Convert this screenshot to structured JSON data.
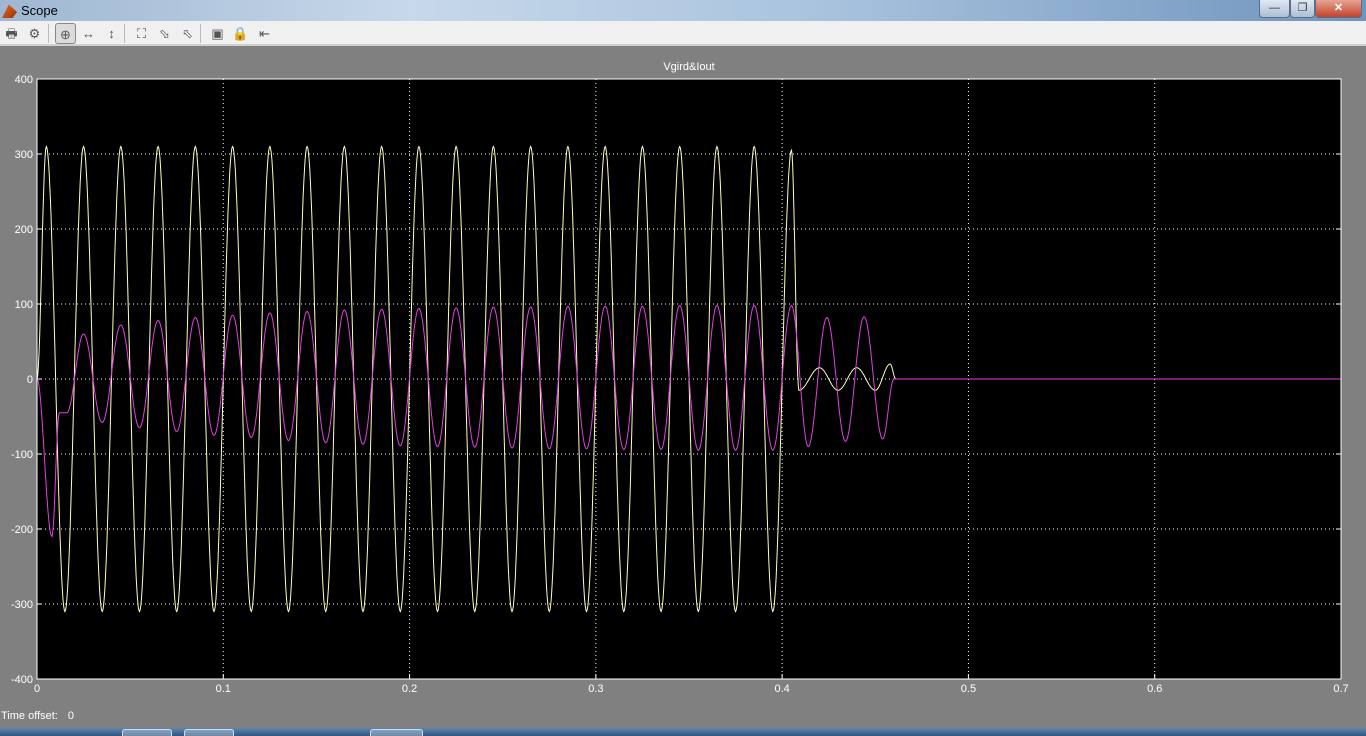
{
  "window": {
    "title": "Scope",
    "minimize_icon": "minimize-icon",
    "restore_icon": "restore-icon",
    "close_icon": "close-icon"
  },
  "toolbar": {
    "items": [
      {
        "name": "print-icon",
        "glyph": "🖶"
      },
      {
        "name": "parameters-icon",
        "glyph": "⚙"
      },
      {
        "name": "zoom-icon",
        "glyph": "⊕",
        "active": true
      },
      {
        "name": "zoom-x-icon",
        "glyph": "↔"
      },
      {
        "name": "zoom-y-icon",
        "glyph": "↕"
      },
      {
        "name": "autoscale-icon",
        "glyph": "⛶"
      },
      {
        "name": "save-axes-icon",
        "glyph": "⬂"
      },
      {
        "name": "restore-axes-icon",
        "glyph": "⬁"
      },
      {
        "name": "floating-scope-icon",
        "glyph": "▣"
      },
      {
        "name": "lock-axes-icon",
        "glyph": "🔒"
      },
      {
        "name": "signal-selection-icon",
        "glyph": "⇤"
      }
    ]
  },
  "footer": {
    "time_offset_label": "Time offset:",
    "time_offset_value": "0"
  },
  "chart_data": {
    "type": "line",
    "title": "Vgird&Iout",
    "xlabel": "",
    "ylabel": "",
    "xlim": [
      0,
      0.7
    ],
    "ylim": [
      -400,
      400
    ],
    "xticks": [
      "0",
      "0.1",
      "0.2",
      "0.3",
      "0.4",
      "0.5",
      "0.6",
      "0.7"
    ],
    "yticks": [
      "-400",
      "-300",
      "-200",
      "-100",
      "0",
      "100",
      "200",
      "300",
      "400"
    ],
    "grid": true,
    "background": "#000000",
    "series": [
      {
        "color": "#ffffc0",
        "x": [
          0,
          0.005,
          0.015,
          0.025,
          0.035,
          0.045,
          0.055,
          0.065,
          0.075,
          0.085,
          0.095,
          0.105,
          0.115,
          0.125,
          0.135,
          0.145,
          0.155,
          0.165,
          0.175,
          0.185,
          0.195,
          0.205,
          0.215,
          0.225,
          0.235,
          0.245,
          0.255,
          0.265,
          0.275,
          0.285,
          0.295,
          0.305,
          0.315,
          0.325,
          0.335,
          0.345,
          0.355,
          0.365,
          0.375,
          0.385,
          0.395,
          0.405,
          0.409,
          0.42,
          0.43,
          0.44,
          0.45,
          0.458,
          0.461,
          0.7
        ],
        "y": [
          0,
          310,
          -310,
          310,
          -310,
          310,
          -310,
          310,
          -310,
          310,
          -310,
          310,
          -310,
          310,
          -310,
          310,
          -310,
          310,
          -310,
          310,
          -310,
          310,
          -310,
          310,
          -310,
          310,
          -310,
          310,
          -310,
          310,
          -310,
          310,
          -310,
          310,
          -310,
          310,
          -310,
          310,
          -310,
          310,
          -310,
          305,
          -15,
          15,
          -15,
          15,
          -15,
          20,
          0,
          0
        ]
      },
      {
        "color": "#e040e0",
        "x": [
          0,
          0.008,
          0.012,
          0.016,
          0.025,
          0.035,
          0.045,
          0.055,
          0.065,
          0.075,
          0.085,
          0.095,
          0.105,
          0.115,
          0.125,
          0.135,
          0.145,
          0.155,
          0.165,
          0.175,
          0.185,
          0.195,
          0.205,
          0.215,
          0.225,
          0.235,
          0.245,
          0.255,
          0.265,
          0.275,
          0.285,
          0.295,
          0.305,
          0.315,
          0.325,
          0.335,
          0.345,
          0.355,
          0.365,
          0.375,
          0.385,
          0.395,
          0.405,
          0.414,
          0.424,
          0.434,
          0.444,
          0.454,
          0.46,
          0.7
        ],
        "y": [
          0,
          -210,
          -45,
          -45,
          60,
          -58,
          72,
          -65,
          78,
          -70,
          82,
          -75,
          85,
          -78,
          88,
          -82,
          90,
          -85,
          92,
          -87,
          93,
          -89,
          94,
          -90,
          95,
          -91,
          96,
          -92,
          96,
          -93,
          97,
          -93,
          97,
          -94,
          97,
          -94,
          98,
          -95,
          98,
          -95,
          98,
          -95,
          98,
          -90,
          82,
          -83,
          83,
          -80,
          0,
          0
        ]
      }
    ]
  }
}
